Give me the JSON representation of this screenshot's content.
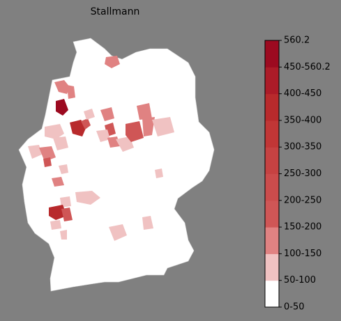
{
  "title": "Stallmann",
  "colorbar": {
    "labels": [
      "0-50",
      "50-100",
      "100-150",
      "150-200",
      "200-250",
      "250-300",
      "300-350",
      "350-400",
      "400-450",
      "450-560.2",
      "560.2"
    ],
    "colors": [
      "#ffffff",
      "#f0c2c2",
      "#e08282",
      "#cf5656",
      "#cb4c4c",
      "#c64242",
      "#c13636",
      "#b82a2c",
      "#ac1b28",
      "#9c0a20"
    ]
  }
}
